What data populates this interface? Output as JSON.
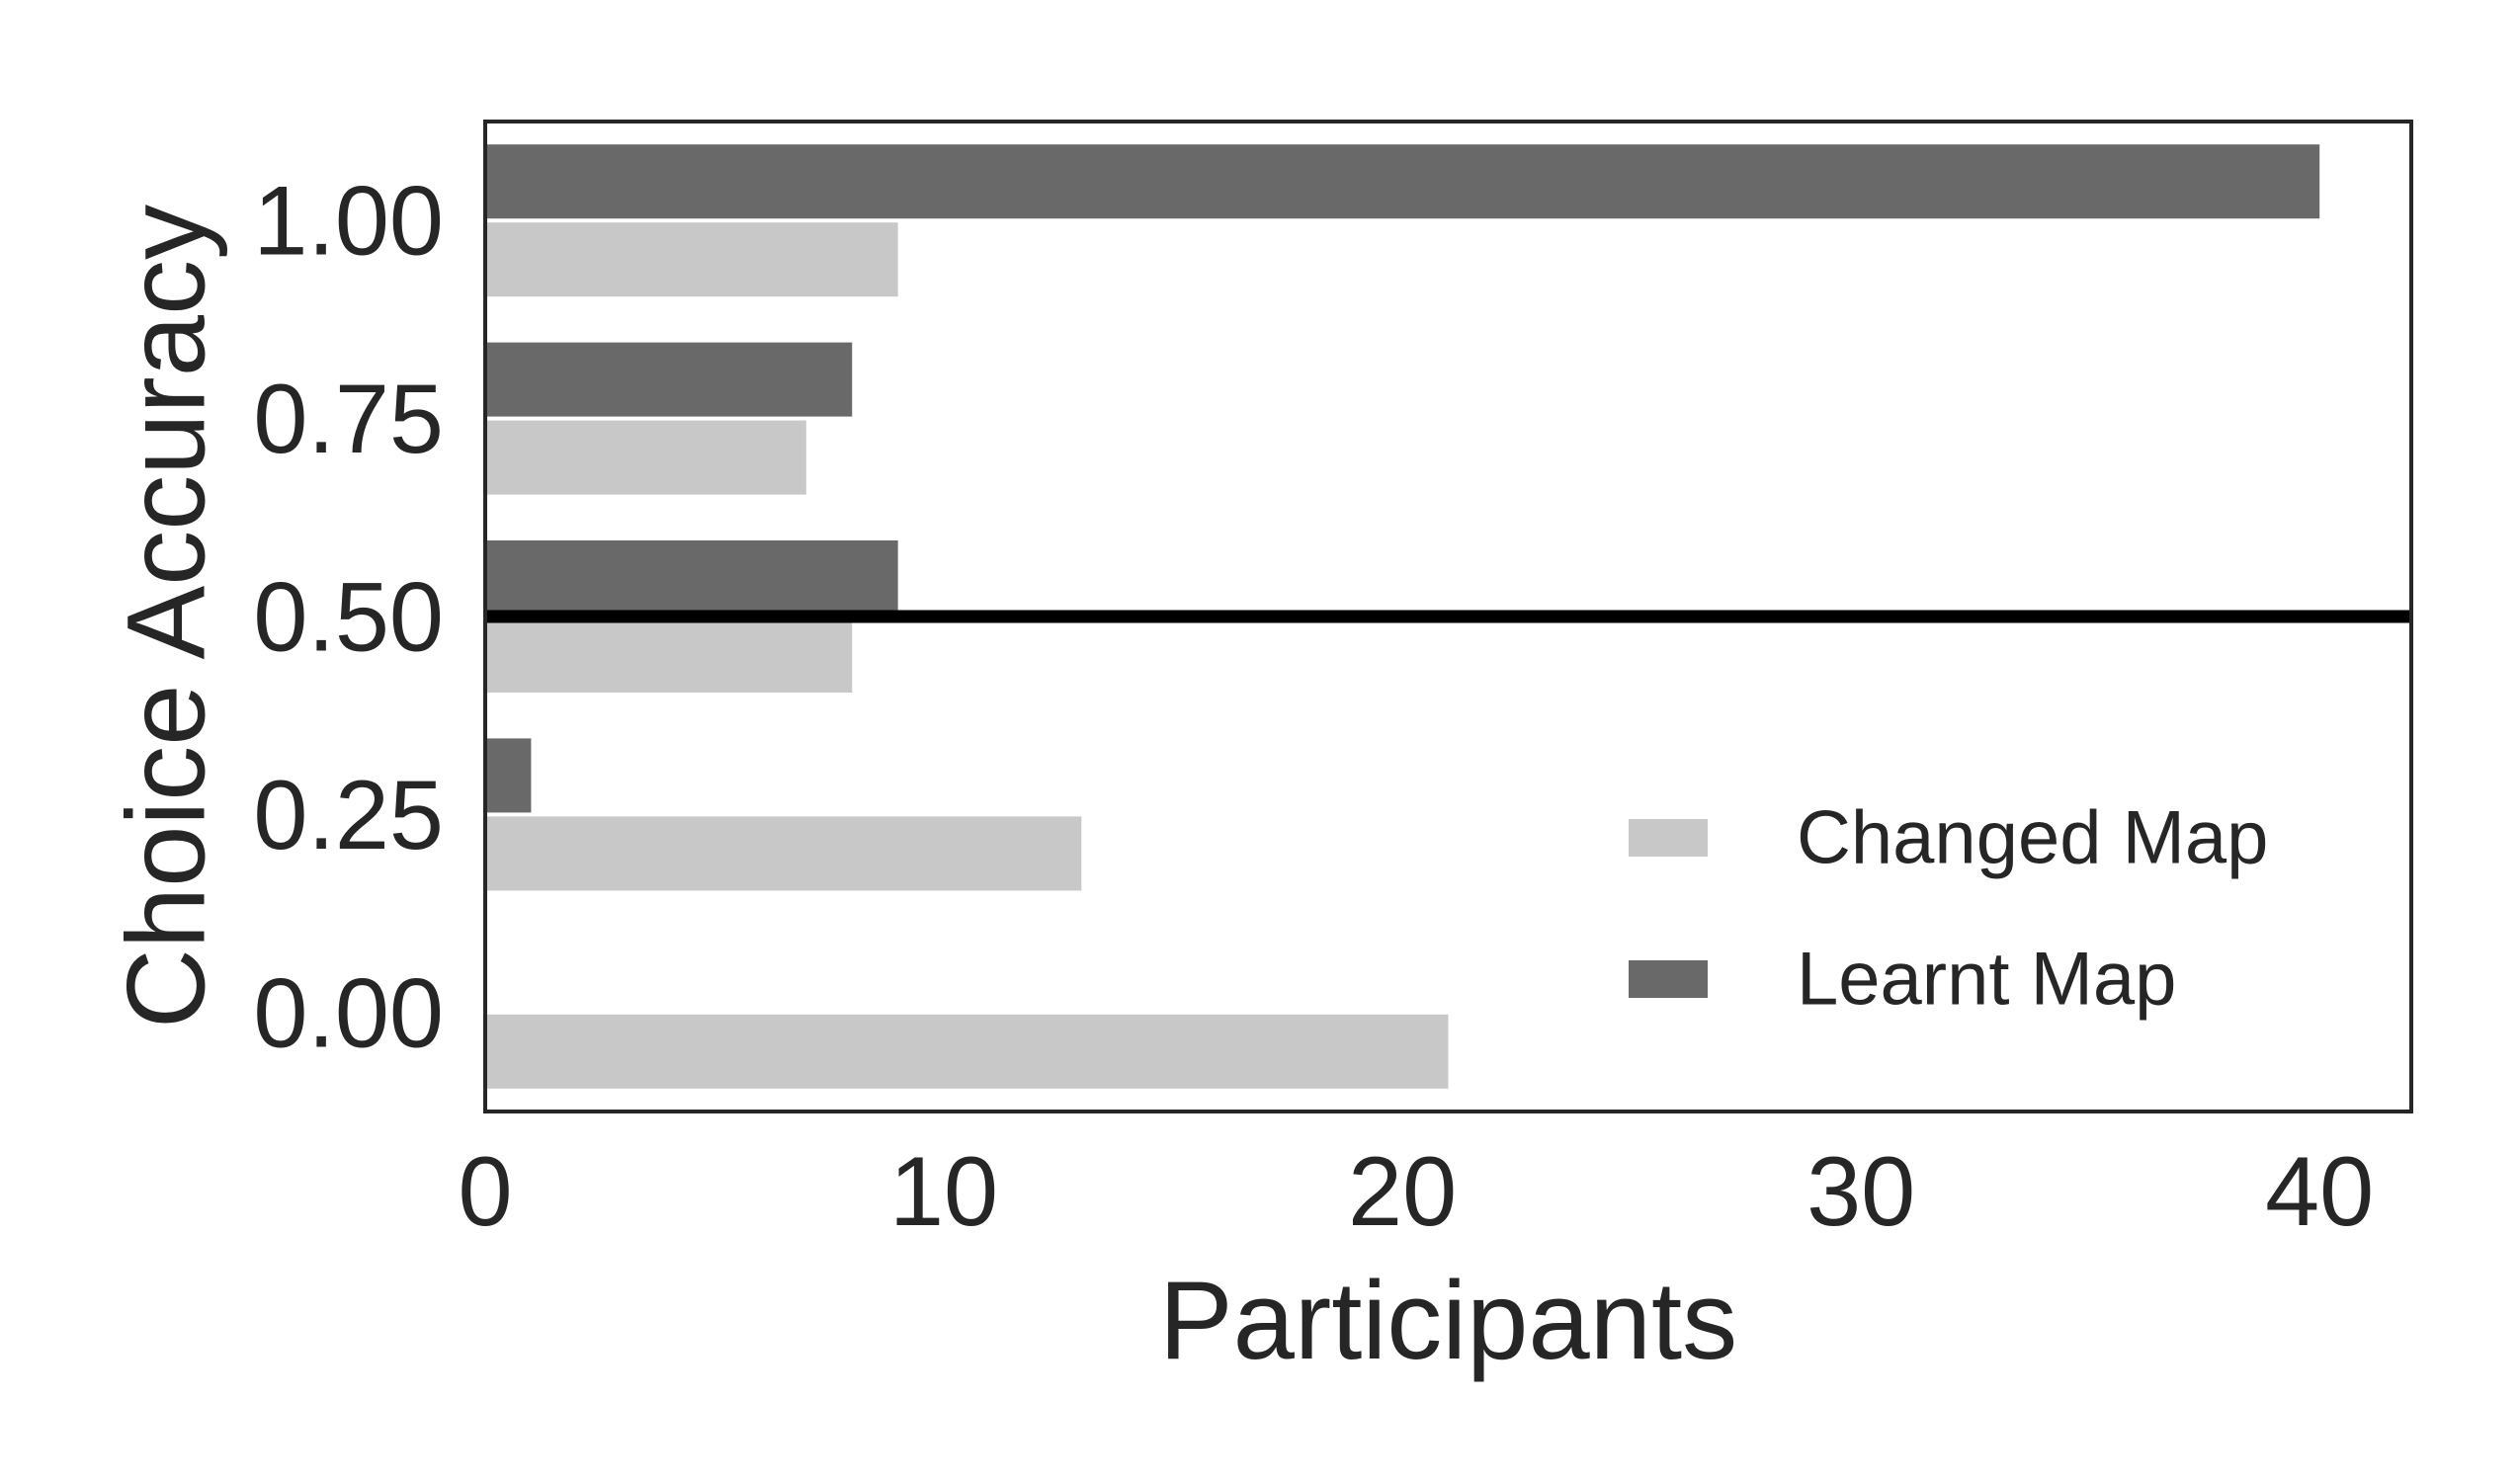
{
  "chart_data": {
    "type": "bar",
    "orientation": "horizontal",
    "categories": [
      "1.00",
      "0.75",
      "0.50",
      "0.25",
      "0.00"
    ],
    "series": [
      {
        "name": "Learnt Map",
        "color": "#696969",
        "values": [
          40,
          8,
          9,
          1,
          0
        ]
      },
      {
        "name": "Changed Map",
        "color": "#c8c8c8",
        "values": [
          9,
          7,
          8,
          13,
          21
        ]
      }
    ],
    "xlabel": "Participants",
    "ylabel": "Choice Accuracy",
    "xlim": [
      0,
      42
    ],
    "xticks": [
      "0",
      "10",
      "20",
      "30",
      "40"
    ],
    "xtick_values": [
      0,
      10,
      20,
      30,
      40
    ],
    "reference_line": {
      "axis": "y",
      "value": 0.5,
      "color": "#000000"
    },
    "legend": {
      "placement": "lower-right",
      "entries": [
        {
          "label": "Changed Map",
          "color": "#c8c8c8"
        },
        {
          "label": "Learnt Map",
          "color": "#696969"
        }
      ]
    },
    "grid": false
  }
}
